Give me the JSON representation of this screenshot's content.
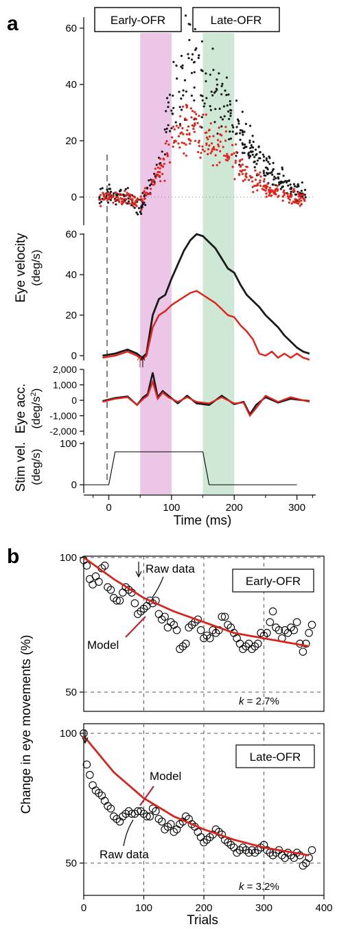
{
  "panels": {
    "a": "a",
    "b": "b"
  },
  "colors": {
    "black_series": "#1a1a1a",
    "red_series": "#e0241b",
    "early_band": "#ecc6e6",
    "late_band": "#cfe8d6",
    "model_line": "#d8241c"
  },
  "panel_a": {
    "labels": {
      "early": "Early-OFR",
      "late": "Late-OFR",
      "velocity_y": "Eye velocity",
      "velocity_unit": "(deg/s)",
      "acc_y": "Eye acc.",
      "acc_unit": "(deg/s",
      "acc_unit_sup": "2",
      "acc_unit_close": ")",
      "stim_y": "Stim vel.",
      "stim_unit": "(deg/s)",
      "x_axis": "Time (ms)"
    },
    "bands": {
      "early_ms": [
        50,
        100
      ],
      "late_ms": [
        150,
        200
      ]
    },
    "x_ticks": [
      "0",
      "100",
      "200",
      "300"
    ],
    "x_range": [
      -40,
      330
    ],
    "velocity_ticks": [
      "0",
      "20",
      "40",
      "60"
    ],
    "mean_ticks": [
      "0",
      "20",
      "40",
      "60"
    ],
    "acc_ticks": [
      "2,000",
      "1,000",
      "0",
      "-1,000",
      "-2,000"
    ],
    "stim_ticks": [
      "100",
      "0"
    ]
  },
  "panel_b": {
    "labels": {
      "y_axis": "Change in eye movements (%)",
      "x_axis": "Trials",
      "early": "Early-OFR",
      "late": "Late-OFR",
      "raw_data": "Raw data",
      "model": "Model",
      "k_sym": "k",
      "k_early": " = 2.7%",
      "k_late": " = 3.2%"
    },
    "x_ticks": [
      "0",
      "100",
      "200",
      "300",
      "400"
    ],
    "y_ticks_top": [
      "100",
      "50"
    ],
    "y_ticks_bottom": [
      "100",
      "50"
    ]
  },
  "chart_data": [
    {
      "type": "scatter",
      "subplot": "a-individual-trials",
      "xlabel": "Time (ms)",
      "ylabel": "Eye velocity (deg/s)",
      "xlim": [
        -40,
        330
      ],
      "ylim": [
        -8,
        62
      ],
      "series": [
        {
          "x": [
            -20,
            0,
            25,
            50,
            65,
            80,
            100,
            120,
            130,
            150,
            180,
            220,
            260,
            290,
            320
          ],
          "y": [
            0,
            1,
            1,
            -4,
            3,
            12,
            32,
            45,
            47,
            42,
            33,
            18,
            8,
            3,
            1
          ]
        },
        {
          "x": [
            -20,
            0,
            25,
            50,
            65,
            80,
            100,
            120,
            135,
            150,
            180,
            220,
            260,
            290,
            320
          ],
          "y": [
            -1,
            0,
            0,
            -2,
            2,
            8,
            18,
            24,
            25,
            22,
            17,
            8,
            2,
            0,
            -1
          ]
        }
      ]
    },
    {
      "type": "line",
      "subplot": "a-mean-velocity",
      "xlim": [
        -40,
        330
      ],
      "ylim": [
        -3,
        62
      ],
      "series": [
        {
          "x": [
            -10,
            10,
            30,
            45,
            53,
            60,
            70,
            80,
            90,
            100,
            110,
            120,
            130,
            140,
            150,
            160,
            170,
            180,
            190,
            200,
            210,
            220,
            230,
            240,
            250,
            260,
            270,
            280,
            290,
            300,
            310,
            320
          ],
          "y": [
            0,
            1,
            3,
            1,
            -1,
            1,
            20,
            28,
            30,
            38,
            45,
            52,
            57,
            60,
            59,
            56,
            53,
            48,
            43,
            41,
            35,
            30,
            27,
            24,
            20,
            17,
            14,
            10,
            7,
            4,
            2,
            1
          ]
        },
        {
          "x": [
            -10,
            10,
            30,
            45,
            53,
            60,
            70,
            80,
            90,
            100,
            110,
            120,
            130,
            140,
            150,
            160,
            170,
            180,
            190,
            200,
            210,
            220,
            230,
            240,
            250,
            260,
            270,
            280,
            290,
            300,
            310,
            320
          ],
          "y": [
            -1,
            0,
            2,
            0,
            -2,
            0,
            14,
            20,
            22,
            25,
            27,
            29,
            31,
            32,
            30,
            28,
            26,
            23,
            20,
            19,
            15,
            12,
            8,
            1,
            0,
            2,
            -1,
            1,
            -1,
            1,
            -1,
            -2
          ]
        }
      ]
    },
    {
      "type": "line",
      "subplot": "a-acceleration",
      "xlim": [
        -40,
        330
      ],
      "ylim": [
        -2000,
        2000
      ],
      "series": [
        {
          "x": [
            -10,
            10,
            30,
            45,
            55,
            62,
            70,
            78,
            86,
            95,
            110,
            125,
            140,
            160,
            180,
            200,
            215,
            225,
            235,
            250,
            270,
            290,
            320
          ],
          "y": [
            -50,
            150,
            250,
            -300,
            200,
            400,
            1800,
            200,
            600,
            300,
            -200,
            300,
            -200,
            -300,
            300,
            -250,
            -100,
            -900,
            -300,
            200,
            -150,
            100,
            -50
          ]
        },
        {
          "x": [
            -10,
            10,
            30,
            45,
            55,
            62,
            70,
            78,
            86,
            95,
            110,
            125,
            140,
            160,
            180,
            200,
            215,
            225,
            235,
            250,
            270,
            290,
            320
          ],
          "y": [
            -100,
            100,
            200,
            -300,
            100,
            300,
            1200,
            100,
            500,
            200,
            -100,
            200,
            -100,
            -200,
            200,
            -200,
            -150,
            -1000,
            -500,
            300,
            -100,
            200,
            -100
          ]
        }
      ]
    },
    {
      "type": "line",
      "subplot": "a-stimulus",
      "xlim": [
        -40,
        330
      ],
      "ylim": [
        0,
        100
      ],
      "x": [
        -40,
        0,
        10,
        150,
        160,
        300
      ],
      "y": [
        0,
        0,
        80,
        80,
        0,
        0
      ]
    },
    {
      "type": "scatter",
      "subplot": "b-early",
      "title": "Early-OFR",
      "xlim": [
        0,
        400
      ],
      "ylim": [
        40,
        100
      ],
      "x": [
        0,
        5,
        10,
        15,
        20,
        25,
        30,
        35,
        40,
        45,
        50,
        55,
        60,
        65,
        70,
        75,
        80,
        85,
        90,
        95,
        100,
        105,
        110,
        115,
        120,
        125,
        130,
        135,
        140,
        145,
        150,
        155,
        160,
        165,
        170,
        175,
        180,
        185,
        190,
        195,
        200,
        205,
        210,
        215,
        220,
        225,
        230,
        235,
        240,
        245,
        250,
        255,
        260,
        265,
        270,
        275,
        280,
        285,
        290,
        295,
        300,
        305,
        310,
        315,
        320,
        325,
        330,
        335,
        340,
        345,
        350,
        355,
        360,
        365,
        370,
        375,
        380
      ],
      "y": [
        99,
        97,
        92,
        90,
        93,
        91,
        96,
        97,
        89,
        88,
        85,
        84,
        84,
        87,
        89,
        88,
        87,
        83,
        79,
        80,
        81,
        82,
        84,
        83,
        84,
        79,
        77,
        78,
        74,
        76,
        75,
        73,
        66,
        67,
        68,
        74,
        75,
        76,
        77,
        73,
        70,
        71,
        70,
        73,
        72,
        73,
        78,
        78,
        75,
        74,
        72,
        70,
        68,
        66,
        67,
        68,
        66,
        67,
        68,
        72,
        71,
        72,
        76,
        80,
        74,
        73,
        70,
        73,
        72,
        74,
        73,
        76,
        68,
        65,
        68,
        72,
        75
      ],
      "model": {
        "x": [
          0,
          50,
          100,
          150,
          200,
          250,
          300,
          350,
          375
        ],
        "y": [
          100,
          92,
          85,
          80,
          76,
          72,
          70,
          68,
          67
        ]
      },
      "k": "2.7%"
    },
    {
      "type": "scatter",
      "subplot": "b-late",
      "title": "Late-OFR",
      "xlim": [
        0,
        400
      ],
      "ylim": [
        40,
        100
      ],
      "x": [
        0,
        5,
        10,
        15,
        20,
        25,
        30,
        35,
        40,
        45,
        50,
        55,
        60,
        65,
        70,
        75,
        80,
        85,
        90,
        95,
        100,
        105,
        110,
        115,
        120,
        125,
        130,
        135,
        140,
        145,
        150,
        155,
        160,
        165,
        170,
        175,
        180,
        185,
        190,
        195,
        200,
        205,
        210,
        215,
        220,
        225,
        230,
        235,
        240,
        245,
        250,
        255,
        260,
        265,
        270,
        275,
        280,
        285,
        290,
        295,
        300,
        305,
        310,
        315,
        320,
        325,
        330,
        335,
        340,
        345,
        350,
        355,
        360,
        365,
        370,
        375,
        380
      ],
      "y": [
        100,
        88,
        84,
        80,
        78,
        77,
        76,
        74,
        72,
        71,
        68,
        67,
        66,
        68,
        69,
        70,
        69,
        69,
        70,
        70,
        69,
        68,
        68,
        71,
        70,
        67,
        66,
        63,
        64,
        65,
        62,
        63,
        65,
        66,
        68,
        67,
        65,
        64,
        62,
        60,
        58,
        59,
        60,
        61,
        63,
        62,
        61,
        59,
        58,
        57,
        56,
        54,
        55,
        56,
        55,
        54,
        55,
        54,
        55,
        56,
        57,
        55,
        54,
        53,
        54,
        55,
        53,
        52,
        54,
        53,
        52,
        54,
        53,
        49,
        50,
        52,
        55
      ],
      "model": {
        "x": [
          0,
          50,
          100,
          150,
          200,
          250,
          300,
          350,
          375
        ],
        "y": [
          99,
          85,
          75,
          68,
          63,
          59,
          56,
          54,
          53
        ]
      },
      "k": "3.2%"
    }
  ]
}
